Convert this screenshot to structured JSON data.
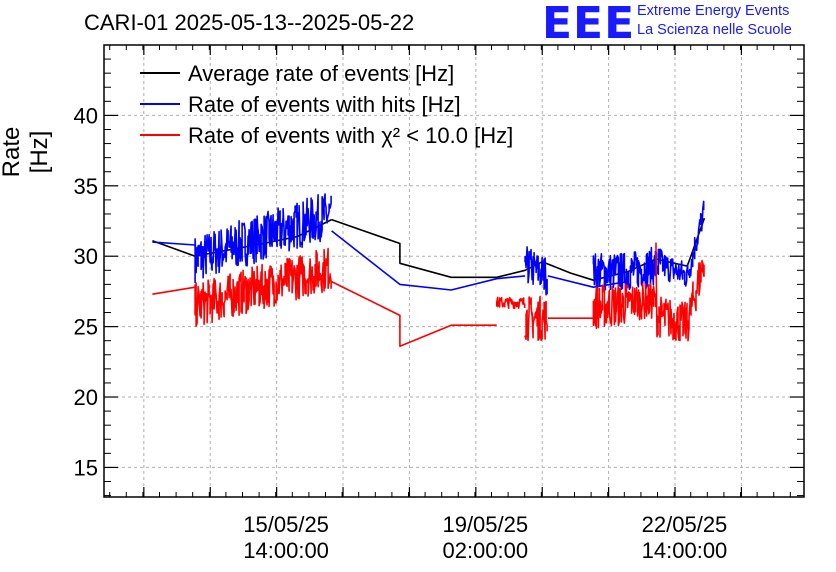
{
  "header": {
    "title": "CARI-01 2025-05-13--2025-05-22",
    "logo_text": "EEE",
    "logo_line1": "Extreme Energy Events",
    "logo_line2": "La Scienza nelle Scuole"
  },
  "colors": {
    "average": "#000000",
    "hits": "#0000ff",
    "chi2": "#ff0000",
    "grid": "#b0b0b0",
    "brand": "#1a1aff"
  },
  "chart_data": {
    "type": "line",
    "title": "CARI-01 2025-05-13--2025-05-22",
    "xlabel": "",
    "ylabel": "Rate [Hz]",
    "ylim": [
      12.9,
      45
    ],
    "xlim_days": [
      -3.2,
      9.1
    ],
    "x_units": "days since 15/05/25 14:00:00",
    "yticks": [
      15,
      20,
      25,
      30,
      35,
      40
    ],
    "ytick_labels": [
      "15",
      "20",
      "25",
      "30",
      "35",
      "40"
    ],
    "xticks": [
      {
        "x": 0,
        "date": "15/05/25",
        "time": "14:00:00"
      },
      {
        "x": 3.5,
        "date": "19/05/25",
        "time": "02:00:00"
      },
      {
        "x": 7,
        "date": "22/05/25",
        "time": "14:00:00"
      }
    ],
    "grid": true,
    "legend_position": "top-left",
    "series": [
      {
        "name": "Average rate of events [Hz]",
        "legend": "Average rate of events [Hz]",
        "color": "#000000",
        "segments": [
          {
            "points": [
              [
                -2.35,
                31.1
              ],
              [
                -1.6,
                30.0
              ],
              [
                -1.2,
                30.3
              ],
              [
                -0.4,
                30.9
              ],
              [
                0.2,
                31.4
              ],
              [
                0.8,
                32.6
              ]
            ]
          },
          {
            "points": [
              [
                0.8,
                32.6
              ],
              [
                2.0,
                30.9
              ],
              [
                2.0,
                29.5
              ],
              [
                2.9,
                28.5
              ],
              [
                3.7,
                28.5
              ],
              [
                4.2,
                29.0
              ],
              [
                4.5,
                29.6
              ],
              [
                5.0,
                28.8
              ],
              [
                5.4,
                28.3
              ],
              [
                6.0,
                28.9
              ],
              [
                6.5,
                29.8
              ],
              [
                7.05,
                29.3
              ],
              [
                7.35,
                32.7
              ]
            ]
          }
        ]
      },
      {
        "name": "Rate of events with hits [Hz]",
        "legend": "Rate of events with hits [Hz]",
        "color": "#0000ff",
        "segments": [
          {
            "points": [
              [
                -2.35,
                31.0
              ],
              [
                -1.6,
                30.8
              ]
            ]
          },
          {
            "points": [
              [
                -1.6,
                29.8
              ],
              [
                0.8,
                33.0
              ]
            ],
            "noise": 1.7
          },
          {
            "points": [
              [
                0.8,
                31.8
              ],
              [
                2.0,
                28.0
              ],
              [
                2.9,
                27.6
              ],
              [
                3.7,
                28.4
              ],
              [
                4.2,
                28.6
              ]
            ]
          },
          {
            "points": [
              [
                4.2,
                29.4
              ],
              [
                4.6,
                28.6
              ]
            ],
            "noise": 1.4
          },
          {
            "points": [
              [
                4.6,
                28.6
              ],
              [
                5.4,
                27.8
              ],
              [
                6.0,
                28.2
              ]
            ]
          },
          {
            "points": [
              [
                5.4,
                28.9
              ],
              [
                6.0,
                28.9
              ],
              [
                6.4,
                29.2
              ],
              [
                6.6,
                29.5
              ]
            ],
            "noise": 1.4
          },
          {
            "points": [
              [
                6.6,
                29.4
              ],
              [
                7.05,
                28.6
              ],
              [
                7.35,
                33.3
              ]
            ],
            "noise": 1.0
          }
        ]
      },
      {
        "name": "Rate of events with chi2 < 10.0 [Hz]",
        "legend": "Rate of events with χ² < 10.0 [Hz]",
        "color": "#ff0000",
        "segments": [
          {
            "points": [
              [
                -2.35,
                27.3
              ],
              [
                -1.6,
                27.8
              ]
            ]
          },
          {
            "points": [
              [
                -1.6,
                26.5
              ],
              [
                0.8,
                29.2
              ]
            ],
            "noise": 1.6
          },
          {
            "points": [
              [
                0.8,
                28.2
              ],
              [
                2.0,
                25.8
              ],
              [
                2.0,
                23.6
              ],
              [
                2.9,
                25.1
              ],
              [
                3.7,
                25.1
              ]
            ]
          },
          {
            "points": [
              [
                3.7,
                26.7
              ],
              [
                4.2,
                26.7
              ]
            ],
            "noise": 0.4
          },
          {
            "points": [
              [
                4.2,
                25.6
              ],
              [
                4.6,
                25.6
              ]
            ],
            "noise": 1.6
          },
          {
            "points": [
              [
                4.6,
                25.6
              ],
              [
                5.4,
                25.6
              ]
            ]
          },
          {
            "points": [
              [
                5.4,
                26.4
              ],
              [
                6.0,
                26.6
              ]
            ],
            "noise": 1.6
          },
          {
            "points": [
              [
                6.0,
                26.8
              ],
              [
                6.5,
                26.8
              ]
            ],
            "noise": 1.3
          },
          {
            "points": [
              [
                6.5,
                25.8
              ],
              [
                7.05,
                25.2
              ],
              [
                7.35,
                29.8
              ]
            ],
            "noise": 1.5
          }
        ]
      }
    ]
  }
}
